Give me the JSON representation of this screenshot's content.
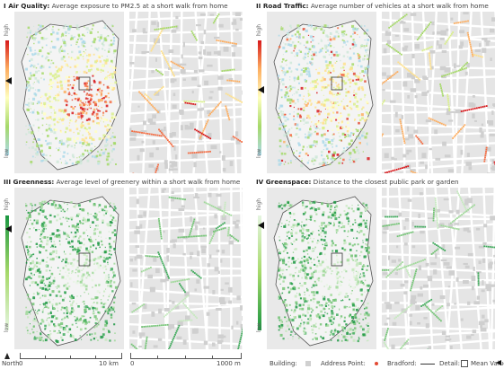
{
  "panels": [
    {
      "id": "air",
      "numeral": "I",
      "name": "Air Quality:",
      "desc": "Average exposure to PM2.5 at a short walk from home",
      "high": "high",
      "low": "low",
      "colors": [
        "#d7191c",
        "#fdae61",
        "#ffffbf",
        "#a6d96a",
        "#abd9e9"
      ],
      "scheme": "heat"
    },
    {
      "id": "traffic",
      "numeral": "II",
      "name": "Road Traffic:",
      "desc": "Average number of vehicles at a short walk from home",
      "high": "high",
      "low": "low",
      "colors": [
        "#d7191c",
        "#fdae61",
        "#ffffbf",
        "#a6d96a",
        "#abd9e9"
      ],
      "scheme": "heat"
    },
    {
      "id": "greenness",
      "numeral": "III",
      "name": "Greenness:",
      "desc": "Average level of greenery within a short walk from home",
      "high": "high",
      "low": "low",
      "colors": [
        "#1a9641",
        "#a6d96a",
        "#e5f5e0"
      ],
      "scheme": "green"
    },
    {
      "id": "greenspace",
      "numeral": "IV",
      "name": "Greenspace:",
      "desc": "Distance to the closest public park or garden",
      "high": "high",
      "low": "low",
      "colors": [
        "#e5f5e0",
        "#a6d96a",
        "#1a9641"
      ],
      "scheme": "green"
    }
  ],
  "footer": {
    "north": "North",
    "scale1_start": "0",
    "scale1_end": "10 km",
    "scale2_start": "0",
    "scale2_end": "1000 m",
    "legend_building": "Building:",
    "legend_address": "Address Point:",
    "legend_bradford": "Bradford:",
    "legend_detail": "Detail:",
    "legend_mean": "Mean Value:"
  }
}
